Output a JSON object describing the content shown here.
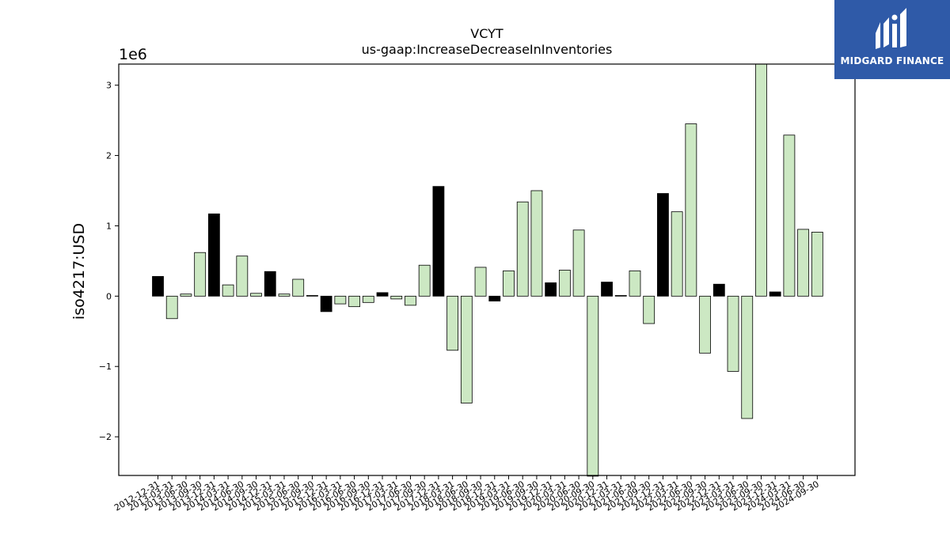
{
  "chart_data": {
    "type": "bar",
    "title": "VCYT",
    "subtitle": "us-gaap:IncreaseDecreaseInInventories",
    "ylabel": "iso4217:USD",
    "offset_label": "1e6",
    "ylim": [
      -2550000,
      3300000
    ],
    "yticks": [
      -2,
      -1,
      0,
      1,
      2,
      3
    ],
    "yticks_multiplier": 1000000,
    "colors": {
      "highlight": "#000000",
      "normal": "#cce8c3",
      "edge": "#000000"
    },
    "categories": [
      "2012-12-31",
      "2013-03-31",
      "2013-06-30",
      "2013-09-30",
      "2013-12-31",
      "2014-03-31",
      "2014-06-30",
      "2014-09-30",
      "2014-12-31",
      "2015-03-31",
      "2015-06-30",
      "2015-09-30",
      "2015-12-31",
      "2016-03-31",
      "2016-06-30",
      "2016-09-30",
      "2016-12-31",
      "2017-03-31",
      "2017-06-30",
      "2017-09-30",
      "2017-12-31",
      "2018-03-31",
      "2018-06-30",
      "2018-09-30",
      "2018-12-31",
      "2019-03-31",
      "2019-06-30",
      "2019-09-30",
      "2019-12-31",
      "2020-03-31",
      "2020-06-30",
      "2020-09-30",
      "2020-12-31",
      "2021-03-31",
      "2021-06-30",
      "2021-09-30",
      "2021-12-31",
      "2022-03-31",
      "2022-06-30",
      "2022-09-30",
      "2022-12-31",
      "2023-03-31",
      "2023-06-30",
      "2023-09-30",
      "2023-12-31",
      "2024-03-31",
      "2024-06-30",
      "2024-09-30"
    ],
    "values": [
      280000,
      -320000,
      30000,
      620000,
      1170000,
      160000,
      570000,
      40000,
      350000,
      30000,
      240000,
      10000,
      -220000,
      -110000,
      -150000,
      -90000,
      50000,
      -40000,
      -130000,
      440000,
      1560000,
      -770000,
      -1520000,
      410000,
      -70000,
      360000,
      1340000,
      1500000,
      190000,
      370000,
      940000,
      -2560000,
      200000,
      10000,
      360000,
      -390000,
      1460000,
      1200000,
      2450000,
      -810000,
      170000,
      -1070000,
      -1740000,
      3300000,
      60000,
      2290000,
      950000,
      910000
    ],
    "highlight": [
      true,
      false,
      false,
      false,
      true,
      false,
      false,
      false,
      true,
      false,
      false,
      false,
      true,
      false,
      false,
      false,
      true,
      false,
      false,
      false,
      true,
      false,
      false,
      false,
      true,
      false,
      false,
      false,
      true,
      false,
      false,
      false,
      true,
      false,
      false,
      false,
      true,
      false,
      false,
      false,
      true,
      false,
      false,
      false,
      true,
      false,
      false,
      false
    ]
  },
  "logo": {
    "text": "MIDGARD FINANCE",
    "icon": "midgard-logo-icon",
    "background": "#2f5aa8"
  }
}
